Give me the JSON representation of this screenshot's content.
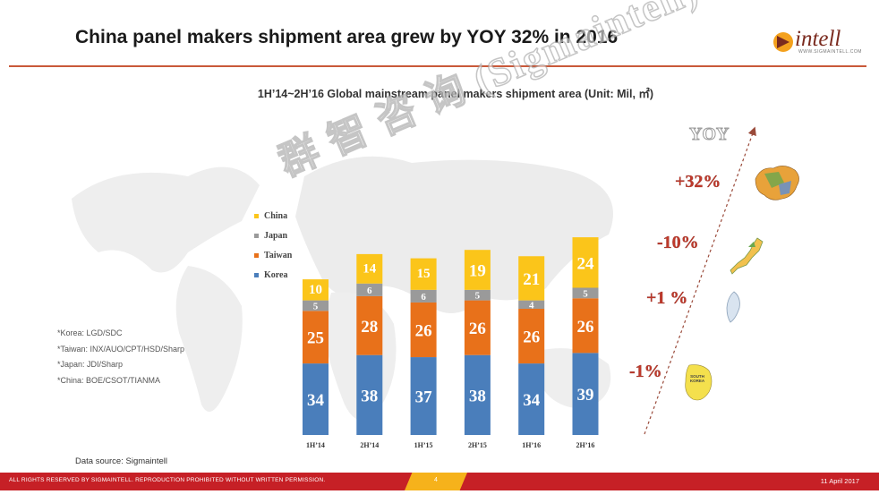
{
  "header": {
    "title": "China panel makers shipment area grew by YOY 32% in 2016",
    "logo_text": "intell",
    "logo_sub": "WWW.SIGMAINTELL.COM"
  },
  "chart_data": {
    "type": "bar",
    "stacked": true,
    "title": "1H’14~2H’16 Global mainstream panel makers shipment area (Unit: Mil, ㎡)",
    "categories": [
      "1H’14",
      "2H’14",
      "1H’15",
      "2H’15",
      "1H’16",
      "2H’16"
    ],
    "series": [
      {
        "name": "Korea",
        "values": [
          34,
          38,
          37,
          38,
          34,
          39
        ],
        "color": "#4a7ebb"
      },
      {
        "name": "Taiwan",
        "values": [
          25,
          28,
          26,
          26,
          26,
          26
        ],
        "color": "#e8711a"
      },
      {
        "name": "Japan",
        "values": [
          5,
          6,
          6,
          5,
          4,
          5
        ],
        "color": "#9a9a9a"
      },
      {
        "name": "China",
        "values": [
          10,
          14,
          15,
          19,
          21,
          24
        ],
        "color": "#fbc51a"
      }
    ],
    "legend_order": [
      "China",
      "Japan",
      "Taiwan",
      "Korea"
    ],
    "legend_position": "left",
    "grid": false
  },
  "yoy": {
    "label": "YOY",
    "items": [
      {
        "region": "China",
        "value": "+32%"
      },
      {
        "region": "Japan",
        "value": "-10%"
      },
      {
        "region": "Taiwan",
        "value": "+1 %"
      },
      {
        "region": "Korea",
        "value": "-1%"
      }
    ]
  },
  "notes": [
    "*Korea: LGD/SDC",
    "*Taiwan: INX/AUO/CPT/HSD/Sharp",
    "*Japan: JDI/Sharp",
    "*China: BOE/CSOT/TIANMA"
  ],
  "source": "Data source:  Sigmaintell",
  "watermark": "群 智 咨 询 (Sigmaintell)",
  "korea_map_label": "SOUTH KOREA",
  "footer": {
    "rights": "ALL RIGHTS RESERVED BY SIGMAINTELL. REPRODUCTION PROHIBITED WITHOUT WRITTEN PERMISSION.",
    "page": "4",
    "date": "11 April 2017"
  },
  "colors": {
    "accent_red": "#c62026",
    "accent_orange": "#f6b21b",
    "yoy_red": "#c0392b"
  }
}
